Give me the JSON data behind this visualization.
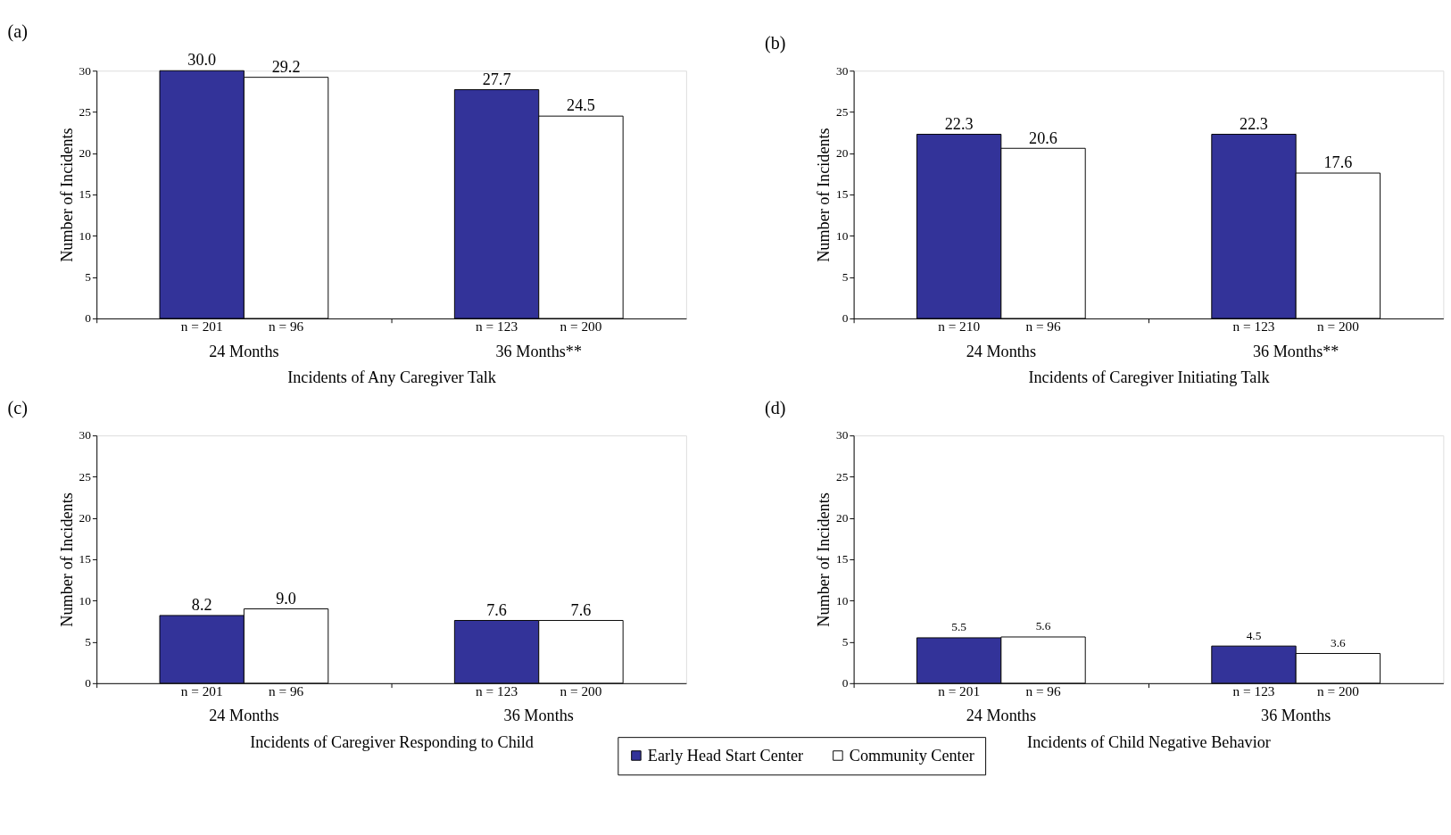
{
  "chart_data": [
    {
      "type": "bar",
      "title": "(a)",
      "xlabel": "Incidents of Any Caregiver Talk",
      "ylabel": "Number of Incidents",
      "categories": [
        "24 Months",
        "36 Months**"
      ],
      "series": [
        {
          "name": "Early Head Start Center",
          "color": "#333399",
          "values": [
            30.0,
            27.7
          ],
          "value_labels": [
            "30.0",
            "27.7"
          ]
        },
        {
          "name": "Community Center",
          "color": "#ffffff",
          "values": [
            29.2,
            24.5
          ],
          "value_labels": [
            "29.2",
            "24.5"
          ]
        }
      ],
      "annotations": [
        "n = 201",
        "n = 96",
        "n = 123",
        "n = 200"
      ],
      "ylim": [
        0,
        30
      ],
      "yticks": [
        0,
        5,
        10,
        15,
        20,
        25,
        30
      ],
      "grid": false,
      "legend": "bottom"
    },
    {
      "type": "bar",
      "title": "(b)",
      "xlabel": "Incidents of Caregiver Initiating Talk",
      "ylabel": "Number of Incidents",
      "categories": [
        "24 Months",
        "36 Months**"
      ],
      "series": [
        {
          "name": "Early Head Start Center",
          "color": "#333399",
          "values": [
            22.3,
            22.3
          ],
          "value_labels": [
            "22.3",
            "22.3"
          ]
        },
        {
          "name": "Community Center",
          "color": "#ffffff",
          "values": [
            20.6,
            17.6
          ],
          "value_labels": [
            "20.6",
            "17.6"
          ]
        }
      ],
      "annotations": [
        "n = 210",
        "n = 96",
        "n = 123",
        "n = 200"
      ],
      "ylim": [
        0,
        30
      ],
      "yticks": [
        0,
        5,
        10,
        15,
        20,
        25,
        30
      ],
      "grid": false,
      "legend": "bottom"
    },
    {
      "type": "bar",
      "title": "(c)",
      "xlabel": "Incidents of Caregiver Responding to Child",
      "ylabel": "Number of Incidents",
      "categories": [
        "24 Months",
        "36 Months"
      ],
      "series": [
        {
          "name": "Early Head Start Center",
          "color": "#333399",
          "values": [
            8.2,
            7.6
          ],
          "value_labels": [
            "8.2",
            "7.6"
          ]
        },
        {
          "name": "Community Center",
          "color": "#ffffff",
          "values": [
            9.0,
            7.6
          ],
          "value_labels": [
            "9.0",
            "7.6"
          ]
        }
      ],
      "annotations": [
        "n = 201",
        "n = 96",
        "n = 123",
        "n = 200"
      ],
      "ylim": [
        0,
        30
      ],
      "yticks": [
        0,
        5,
        10,
        15,
        20,
        25,
        30
      ],
      "grid": false,
      "legend": "bottom"
    },
    {
      "type": "bar",
      "title": "(d)",
      "xlabel": "Incidents of Child Negative Behavior",
      "ylabel": "Number of Incidents",
      "categories": [
        "24 Months",
        "36 Months"
      ],
      "series": [
        {
          "name": "Early Head Start Center",
          "color": "#333399",
          "values": [
            5.5,
            4.5
          ],
          "value_labels": [
            "5.5",
            "4.5"
          ]
        },
        {
          "name": "Community Center",
          "color": "#ffffff",
          "values": [
            5.6,
            3.6
          ],
          "value_labels": [
            "5.6",
            "3.6"
          ]
        }
      ],
      "annotations": [
        "n = 201",
        "n = 96",
        "n = 123",
        "n = 200"
      ],
      "ylim": [
        0,
        30
      ],
      "yticks": [
        0,
        5,
        10,
        15,
        20,
        25,
        30
      ],
      "grid": false,
      "legend": "bottom"
    }
  ]
}
